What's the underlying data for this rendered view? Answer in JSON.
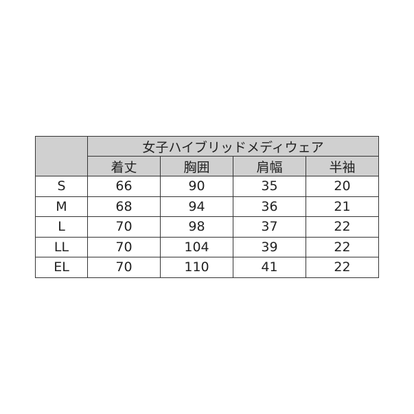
{
  "table": {
    "title": "女子ハイブリッドメディウェア",
    "columns": [
      "着丈",
      "胸囲",
      "肩幅",
      "半袖"
    ],
    "header_color": "#d0d0d0",
    "rows": [
      {
        "size": "S",
        "values": [
          "66",
          "90",
          "35",
          "20"
        ]
      },
      {
        "size": "M",
        "values": [
          "68",
          "94",
          "36",
          "21"
        ]
      },
      {
        "size": "L",
        "values": [
          "70",
          "98",
          "37",
          "22"
        ]
      },
      {
        "size": "LL",
        "values": [
          "70",
          "104",
          "39",
          "22"
        ]
      },
      {
        "size": "EL",
        "values": [
          "70",
          "110",
          "41",
          "22"
        ]
      }
    ]
  }
}
